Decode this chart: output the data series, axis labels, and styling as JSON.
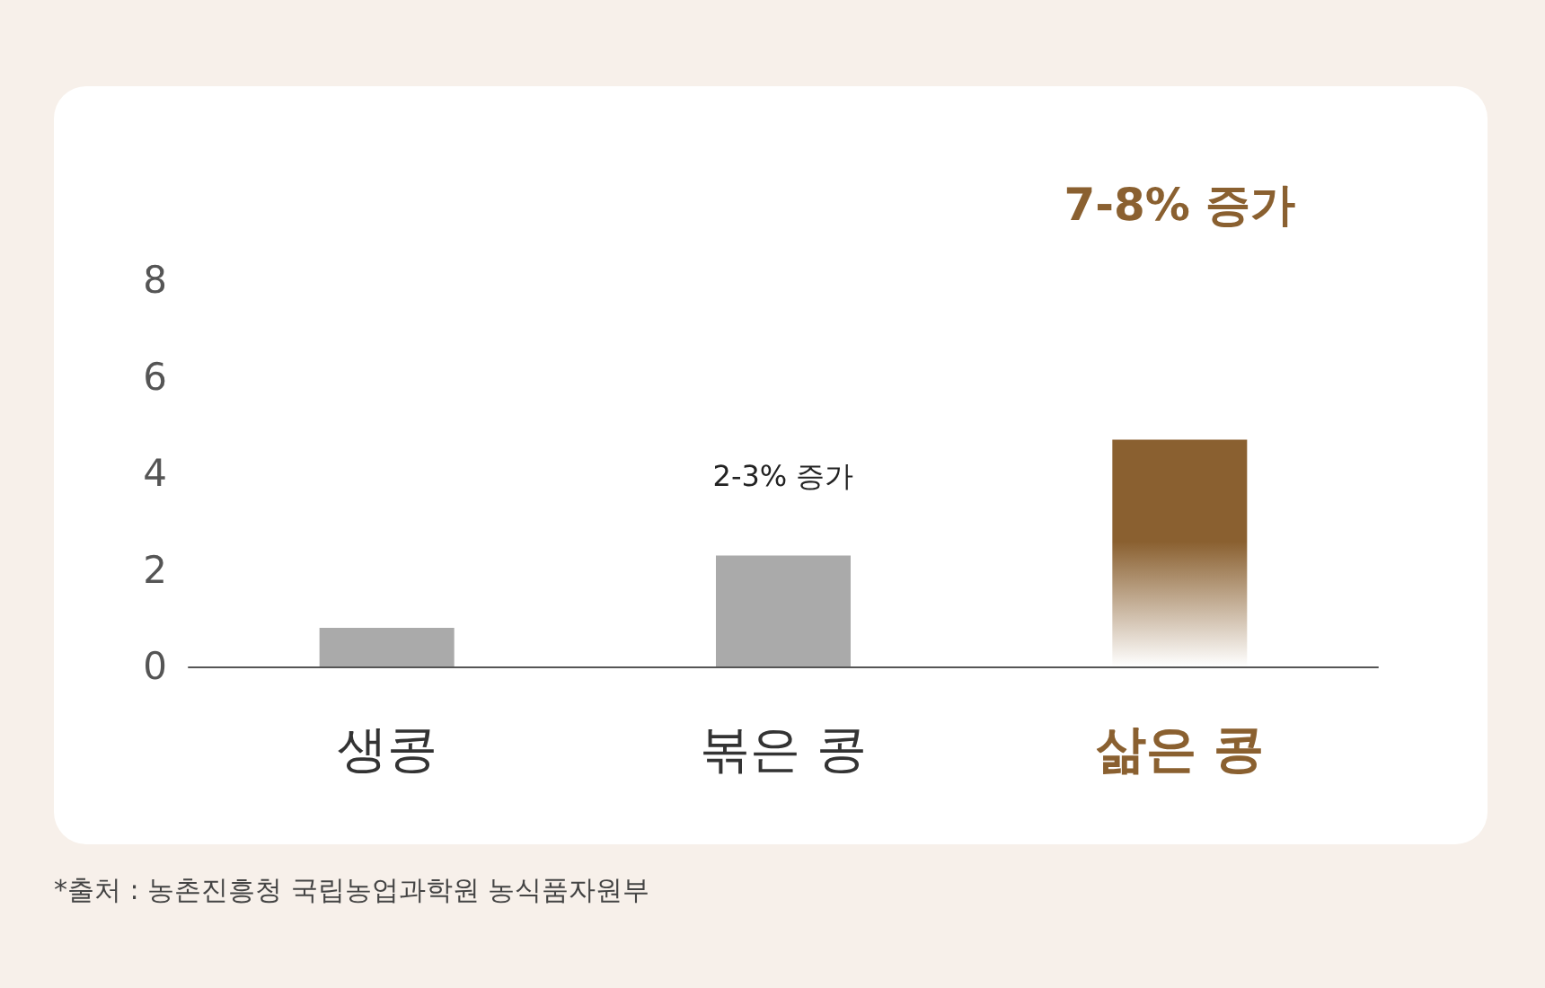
{
  "chart_data": {
    "type": "bar",
    "categories": [
      "생콩",
      "볶은 콩",
      "삶은 콩"
    ],
    "values": [
      0.8,
      2.3,
      4.7
    ],
    "colors": [
      "#aaaaaa",
      "#aaaaaa",
      "#8a6030"
    ],
    "ylim": [
      0,
      8
    ],
    "yticks": [
      0,
      2,
      4,
      6,
      8
    ],
    "grid": false,
    "annotations": [
      "2-3% 증가",
      "7-8% 증가",
      "*출처 : 농촌진흥청 국립농업과학원 농식품자원부"
    ]
  }
}
